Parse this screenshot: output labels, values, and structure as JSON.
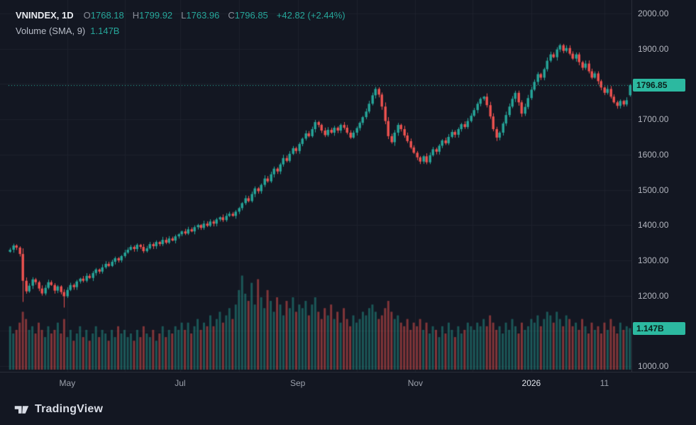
{
  "legend": {
    "symbol": "VNINDEX, 1D",
    "o_label": "O",
    "o_value": "1768.18",
    "h_label": "H",
    "h_value": "1799.92",
    "l_label": "L",
    "l_value": "1763.96",
    "c_label": "C",
    "c_value": "1796.85",
    "change": "+42.82 (+2.44%)",
    "volume_label": "Volume (SMA, 9)",
    "volume_value": "1.147B"
  },
  "badges": {
    "price": "1796.85",
    "volume": "1.147B"
  },
  "y_axis": {
    "labels": [
      {
        "v": 2000,
        "label": "2000.00"
      },
      {
        "v": 1900,
        "label": "1900.00"
      },
      {
        "v": 1800,
        "label": "1800.00"
      },
      {
        "v": 1700,
        "label": "1700.00"
      },
      {
        "v": 1600,
        "label": "1600.00"
      },
      {
        "v": 1500,
        "label": "1500.00"
      },
      {
        "v": 1400,
        "label": "1400.00"
      },
      {
        "v": 1300,
        "label": "1300.00"
      },
      {
        "v": 1200,
        "label": "1200.00"
      },
      {
        "v": 1100,
        "label": "1100.00"
      },
      {
        "v": 1000,
        "label": "1000.00"
      }
    ]
  },
  "x_axis": {
    "ticks": [
      {
        "i": 18.5,
        "label": "May",
        "year": false
      },
      {
        "i": 36.5,
        "label": "",
        "year": false
      },
      {
        "i": 54,
        "label": "Jul",
        "year": false
      },
      {
        "i": 72.5,
        "label": "",
        "year": false
      },
      {
        "i": 91,
        "label": "Sep",
        "year": false
      },
      {
        "i": 109.5,
        "label": "",
        "year": false
      },
      {
        "i": 128,
        "label": "Nov",
        "year": false
      },
      {
        "i": 146,
        "label": "",
        "year": false
      },
      {
        "i": 164.5,
        "label": "2026",
        "year": true
      },
      {
        "i": 187.5,
        "label": "11",
        "year": false
      }
    ]
  },
  "footer": {
    "brand": "TradingView"
  },
  "chart_data": {
    "type": "candlestick",
    "symbol": "VNINDEX",
    "interval": "1D",
    "title": "VNINDEX, 1D",
    "last": {
      "open": 1768.18,
      "high": 1799.92,
      "low": 1763.96,
      "close": 1796.85,
      "change": "+42.82",
      "change_pct": "+2.44%"
    },
    "price_line": 1796.85,
    "volume_sma_label": "Volume (SMA, 9)",
    "volume_sma_display": "1.147B",
    "volume_sma_value": 1.147,
    "y_range": [
      1000,
      2000
    ],
    "x_tick_labels": [
      "May",
      "Jul",
      "Sep",
      "Nov",
      "2026",
      "11"
    ],
    "first_open": 1324,
    "closes": [
      1330,
      1342,
      1336,
      1318,
      1242,
      1212,
      1228,
      1246,
      1238,
      1220,
      1206,
      1222,
      1238,
      1230,
      1214,
      1226,
      1210,
      1198,
      1216,
      1230,
      1224,
      1240,
      1248,
      1242,
      1256,
      1250,
      1264,
      1274,
      1268,
      1280,
      1290,
      1284,
      1296,
      1306,
      1300,
      1312,
      1322,
      1330,
      1338,
      1332,
      1344,
      1338,
      1326,
      1334,
      1346,
      1340,
      1352,
      1346,
      1358,
      1350,
      1362,
      1356,
      1368,
      1374,
      1382,
      1376,
      1388,
      1382,
      1394,
      1400,
      1392,
      1404,
      1398,
      1410,
      1404,
      1416,
      1422,
      1414,
      1426,
      1432,
      1426,
      1438,
      1448,
      1462,
      1476,
      1468,
      1488,
      1504,
      1496,
      1514,
      1532,
      1524,
      1544,
      1560,
      1552,
      1572,
      1590,
      1582,
      1602,
      1618,
      1610,
      1630,
      1645,
      1660,
      1652,
      1672,
      1692,
      1684,
      1668,
      1655,
      1670,
      1662,
      1676,
      1668,
      1684,
      1676,
      1662,
      1648,
      1662,
      1675,
      1690,
      1706,
      1722,
      1744,
      1768,
      1786,
      1770,
      1736,
      1695,
      1652,
      1635,
      1662,
      1684,
      1672,
      1654,
      1638,
      1620,
      1605,
      1592,
      1580,
      1595,
      1578,
      1598,
      1615,
      1608,
      1625,
      1640,
      1632,
      1650,
      1664,
      1656,
      1672,
      1686,
      1678,
      1695,
      1710,
      1726,
      1744,
      1758,
      1764,
      1740,
      1708,
      1672,
      1648,
      1662,
      1688,
      1712,
      1736,
      1758,
      1775,
      1748,
      1716,
      1735,
      1760,
      1784,
      1806,
      1828,
      1818,
      1842,
      1866,
      1884,
      1876,
      1898,
      1910,
      1894,
      1902,
      1886,
      1872,
      1884,
      1862,
      1846,
      1858,
      1836,
      1818,
      1830,
      1808,
      1790,
      1775,
      1786,
      1764,
      1748,
      1738,
      1752,
      1742,
      1754,
      1796.85
    ],
    "volumes": [
      1.2,
      1.0,
      1.1,
      1.3,
      1.6,
      1.4,
      1.1,
      1.2,
      1.0,
      1.3,
      1.1,
      0.9,
      1.2,
      1.0,
      1.1,
      1.3,
      1.0,
      1.4,
      0.9,
      1.1,
      0.8,
      1.0,
      1.2,
      0.9,
      1.1,
      0.8,
      1.0,
      1.2,
      0.9,
      1.1,
      1.0,
      0.8,
      1.1,
      0.9,
      1.2,
      1.0,
      1.1,
      0.9,
      1.0,
      0.8,
      1.1,
      0.9,
      1.2,
      1.0,
      0.9,
      1.1,
      0.8,
      1.0,
      1.2,
      0.9,
      1.1,
      1.0,
      1.2,
      1.1,
      1.3,
      1.1,
      1.3,
      1.0,
      1.2,
      1.4,
      1.1,
      1.3,
      1.2,
      1.5,
      1.2,
      1.4,
      1.6,
      1.3,
      1.5,
      1.7,
      1.4,
      1.8,
      2.2,
      2.6,
      2.1,
      1.9,
      2.4,
      1.8,
      2.5,
      2.0,
      1.7,
      2.2,
      1.9,
      1.6,
      2.0,
      1.8,
      1.5,
      1.9,
      1.7,
      2.0,
      1.6,
      1.8,
      1.7,
      1.9,
      1.5,
      1.8,
      2.0,
      1.6,
      1.4,
      1.7,
      1.5,
      1.8,
      1.4,
      1.6,
      1.3,
      1.7,
      1.4,
      1.2,
      1.5,
      1.3,
      1.4,
      1.6,
      1.5,
      1.7,
      1.8,
      1.6,
      1.4,
      1.5,
      1.7,
      1.9,
      1.6,
      1.4,
      1.5,
      1.3,
      1.2,
      1.4,
      1.1,
      1.3,
      1.2,
      1.4,
      1.1,
      1.3,
      1.0,
      1.2,
      1.1,
      0.9,
      1.2,
      1.0,
      1.3,
      1.1,
      0.9,
      1.2,
      1.0,
      1.1,
      1.3,
      1.2,
      1.1,
      1.3,
      1.2,
      1.4,
      1.2,
      1.5,
      1.3,
      1.1,
      1.2,
      1.0,
      1.3,
      1.1,
      1.4,
      1.2,
      1.0,
      1.3,
      1.1,
      1.2,
      1.4,
      1.3,
      1.5,
      1.2,
      1.4,
      1.6,
      1.5,
      1.3,
      1.6,
      1.4,
      1.2,
      1.5,
      1.4,
      1.2,
      1.3,
      1.1,
      1.4,
      1.2,
      1.0,
      1.3,
      1.1,
      1.2,
      1.0,
      1.3,
      1.1,
      1.4,
      1.2,
      1.0,
      1.3,
      1.1,
      1.2,
      1.147
    ],
    "wick_low_overrides": {
      "4": 1182,
      "17": 1166
    },
    "colors": {
      "background": "#131722",
      "up": "#26a69a",
      "down": "#ef5350",
      "grid": "#1e222d",
      "axis_text": "#b2b5be",
      "badge_bg": "#2cb9a0",
      "badge_text": "#0b201b",
      "price_line": "#2cb9a0"
    }
  }
}
